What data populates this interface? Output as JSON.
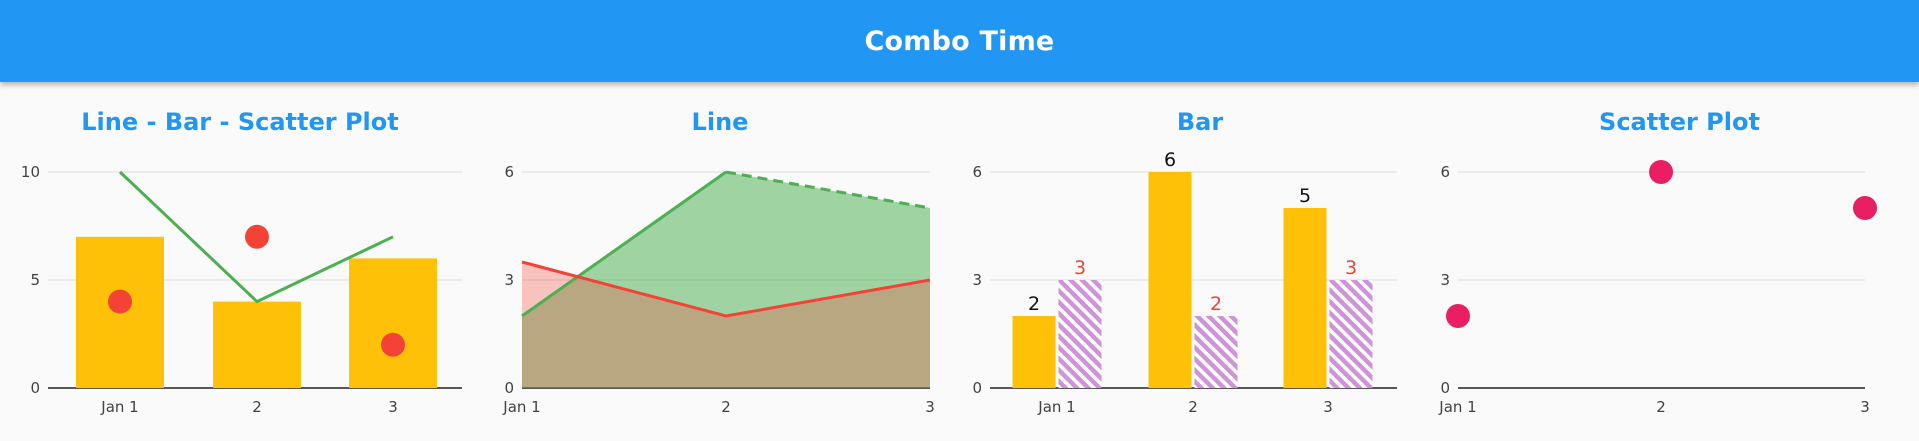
{
  "app": {
    "title": "Combo Time"
  },
  "colors": {
    "appbar": "#2196f3",
    "title": "#2196f3",
    "bar": "#ffc107",
    "line_green": "#4caf50",
    "line_red": "#f44336",
    "scatter_red": "#f44336",
    "scatter_pink": "#e91e63",
    "hatch": "#ce93d8",
    "bar_label_red": "#f44336",
    "grid": "#d9d9d9",
    "axis": "#212121",
    "tick_text": "#424242"
  },
  "chart_data": [
    {
      "id": "combo",
      "type": "bar",
      "title": "Line - Bar - Scatter Plot",
      "categories": [
        "Jan 1",
        "2",
        "3"
      ],
      "yticks": [
        0,
        5,
        10
      ],
      "ylim": [
        0,
        10
      ],
      "grid": true,
      "series": [
        {
          "type": "bar",
          "values": [
            7,
            4,
            6
          ]
        },
        {
          "type": "line",
          "values": [
            10,
            4,
            7
          ]
        },
        {
          "type": "scatter",
          "values": [
            4,
            7,
            2
          ]
        }
      ]
    },
    {
      "id": "line",
      "type": "area",
      "title": "Line",
      "categories": [
        "Jan 1",
        "2",
        "3"
      ],
      "yticks": [
        0,
        3,
        6
      ],
      "ylim": [
        0,
        6
      ],
      "grid": true,
      "series": [
        {
          "type": "area",
          "values": [
            2,
            6,
            5
          ],
          "dashed_last_segment": true
        },
        {
          "type": "area",
          "values": [
            3.5,
            2,
            3
          ]
        }
      ]
    },
    {
      "id": "bar",
      "type": "bar",
      "title": "Bar",
      "categories": [
        "Jan 1",
        "2",
        "3"
      ],
      "yticks": [
        0,
        3,
        6
      ],
      "ylim": [
        0,
        6
      ],
      "grid": true,
      "series": [
        {
          "type": "bar",
          "values": [
            2,
            6,
            5
          ],
          "labels": [
            "2",
            "6",
            "5"
          ]
        },
        {
          "type": "bar",
          "pattern": "hatched",
          "values": [
            3,
            2,
            3
          ],
          "labels": [
            "3",
            "2",
            "3"
          ]
        }
      ]
    },
    {
      "id": "scatter",
      "type": "scatter",
      "title": "Scatter Plot",
      "categories": [
        "Jan 1",
        "2",
        "3"
      ],
      "yticks": [
        0,
        3,
        6
      ],
      "ylim": [
        0,
        6
      ],
      "grid": true,
      "series": [
        {
          "type": "scatter",
          "values": [
            2,
            6,
            5
          ]
        }
      ]
    }
  ]
}
